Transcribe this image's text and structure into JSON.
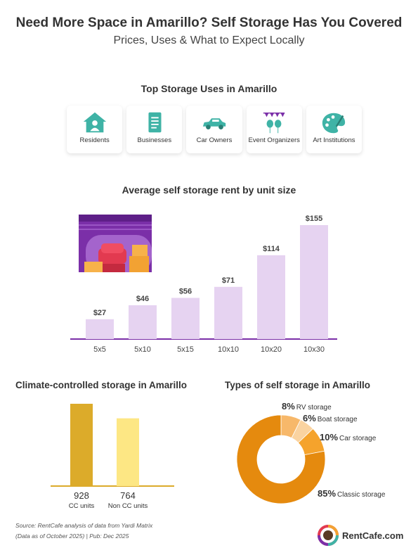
{
  "header": {
    "title": "Need More Space in Amarillo? Self Storage Has You Covered",
    "subtitle": "Prices, Uses & What to Expect Locally"
  },
  "uses": {
    "title": "Top Storage Uses in Amarillo",
    "items": [
      {
        "label": "Residents",
        "icon": "house-person-icon"
      },
      {
        "label": "Businesses",
        "icon": "document-icon"
      },
      {
        "label": "Car Owners",
        "icon": "car-icon"
      },
      {
        "label": "Event Organizers",
        "icon": "party-balloons-icon"
      },
      {
        "label": "Art Institutions",
        "icon": "palette-icon"
      }
    ]
  },
  "colors": {
    "teal": "#3fb3a6",
    "rent_bar": "#e6d3f1",
    "purple": "#7b2fa8",
    "cc_dark": "#dcab2a",
    "cc_light": "#fde784",
    "donut_main": "#e58a0e",
    "donut_rv": "#f7b86a",
    "donut_boat": "#fad3a0",
    "donut_car": "#f5a32c"
  },
  "chart_data": [
    {
      "type": "bar",
      "title": "Average self storage rent by unit size",
      "categories": [
        "5x5",
        "5x10",
        "5x15",
        "10x10",
        "10x20",
        "10x30"
      ],
      "values": [
        27,
        46,
        56,
        71,
        114,
        155
      ],
      "labels": [
        "$27",
        "$46",
        "$56",
        "$71",
        "$114",
        "$155"
      ],
      "ylim": [
        0,
        155
      ]
    },
    {
      "type": "bar",
      "title": "Climate-controlled storage in Amarillo",
      "categories": [
        "CC units",
        "Non CC units"
      ],
      "values": [
        928,
        764
      ],
      "labels": [
        "928",
        "764"
      ],
      "ylim": [
        0,
        928
      ]
    },
    {
      "type": "pie",
      "title": "Types of self storage in Amarillo",
      "categories": [
        "RV storage",
        "Boat storage",
        "Car storage",
        "Classic storage"
      ],
      "values": [
        8,
        6,
        10,
        85
      ],
      "labels": [
        "8%",
        "6%",
        "10%",
        "85%"
      ]
    }
  ],
  "footer": {
    "source_line1": "Source: RentCafe analysis of data from Yardi Matrix",
    "source_line2": "(Data as of October 2025) | Pub: Dec 2025",
    "logo_text": "RentCafe.com"
  }
}
